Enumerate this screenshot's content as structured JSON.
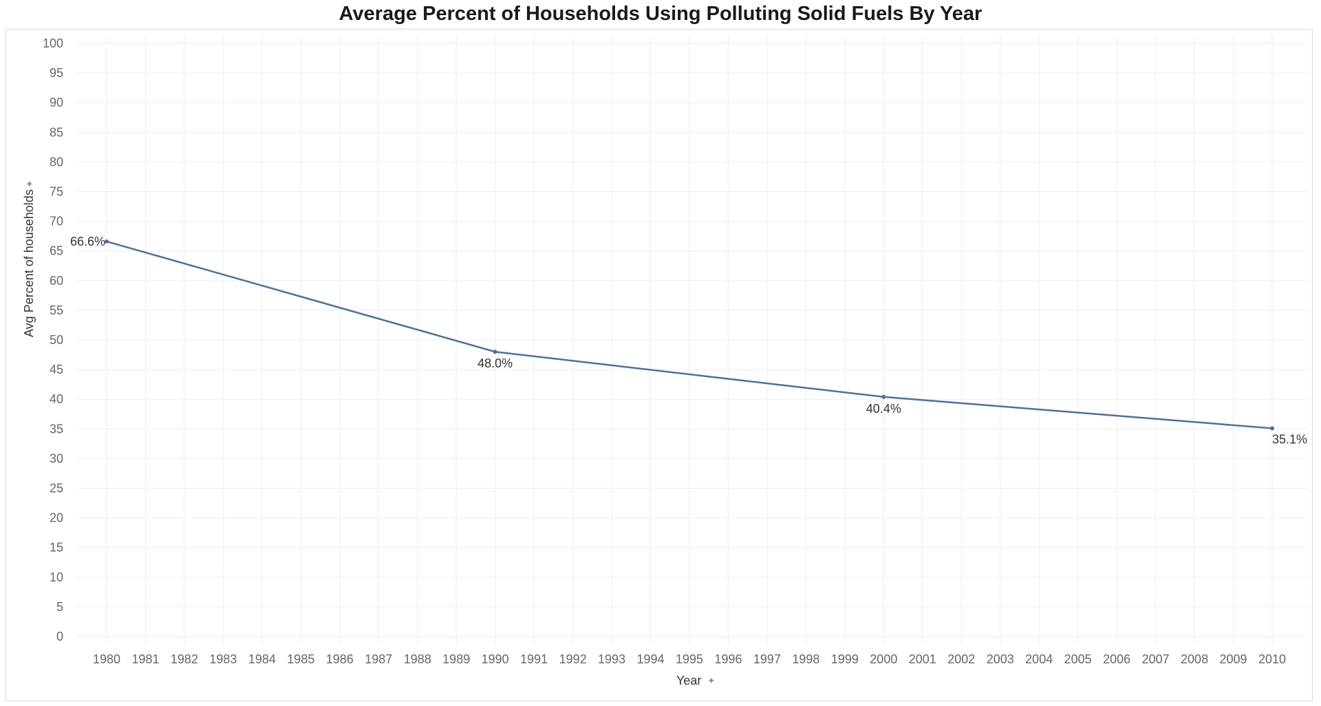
{
  "chart_data": {
    "type": "line",
    "title": "Average Percent of Households Using Polluting Solid Fuels By Year",
    "xlabel": "Year",
    "ylabel": "Avg Percent of households",
    "xlim": [
      1980,
      2010
    ],
    "ylim": [
      0,
      100
    ],
    "x_ticks": [
      1980,
      1981,
      1982,
      1983,
      1984,
      1985,
      1986,
      1987,
      1988,
      1989,
      1990,
      1991,
      1992,
      1993,
      1994,
      1995,
      1996,
      1997,
      1998,
      1999,
      2000,
      2001,
      2002,
      2003,
      2004,
      2005,
      2006,
      2007,
      2008,
      2009,
      2010
    ],
    "y_ticks": [
      0,
      5,
      10,
      15,
      20,
      25,
      30,
      35,
      40,
      45,
      50,
      55,
      60,
      65,
      70,
      75,
      80,
      85,
      90,
      95,
      100
    ],
    "grid": true,
    "series": [
      {
        "color": "#4e6f9a",
        "x": [
          1980,
          1990,
          2000,
          2010
        ],
        "values": [
          66.6,
          48.0,
          40.4,
          35.1
        ],
        "labels": [
          "66.6%",
          "48.0%",
          "40.4%",
          "35.1%"
        ]
      }
    ]
  }
}
